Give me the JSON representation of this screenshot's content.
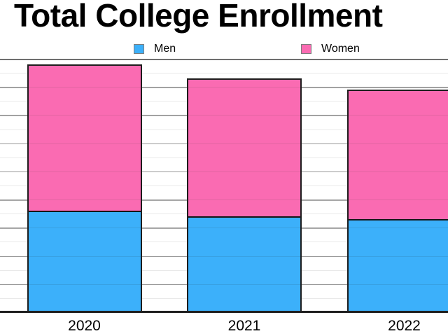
{
  "title": "Total College Enrollment",
  "legend": {
    "items": [
      {
        "label": "Men",
        "color": "#3cb0fa"
      },
      {
        "label": "Women",
        "color": "#fa6bb2"
      }
    ]
  },
  "colors": {
    "men": "#3cb0fa",
    "women": "#fa6bb2",
    "bar_border": "#1d1d1d",
    "axis_line": "#1f1f1f",
    "major_gridline": "#a9a9a9",
    "minor_gridline": "#e9e9e9"
  },
  "chart_data": {
    "type": "bar",
    "stacked": true,
    "title": "Total College Enrollment",
    "categories": [
      "2020",
      "2021",
      "2022"
    ],
    "series": [
      {
        "name": "Men",
        "color": "#3cb0fa",
        "values": [
          3.6,
          3.4,
          3.3
        ]
      },
      {
        "name": "Women",
        "color": "#fa6bb2",
        "values": [
          5.2,
          4.9,
          4.6
        ]
      }
    ],
    "stack_totals": [
      8.8,
      8.3,
      7.9
    ],
    "xlabel": "",
    "ylabel": "",
    "ylim": [
      0,
      9
    ],
    "y_major_divisions": 9,
    "y_minor_per_major": 1,
    "y_axis_tick_labels_visible": false,
    "grid": true,
    "legend_position": "top"
  }
}
